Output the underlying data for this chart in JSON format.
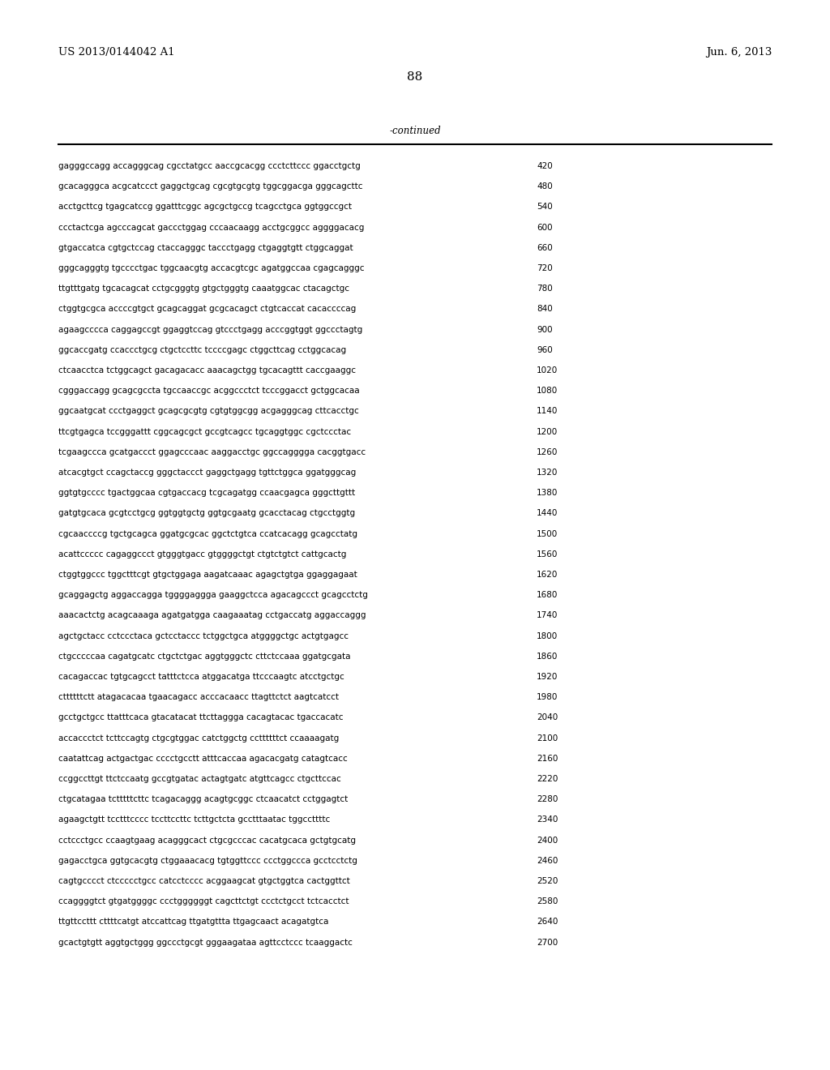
{
  "header_left": "US 2013/0144042 A1",
  "header_right": "Jun. 6, 2013",
  "page_number": "88",
  "continued_label": "-continued",
  "background_color": "#ffffff",
  "text_color": "#000000",
  "line_color": "#000000",
  "seq_font_size": 7.5,
  "header_font_size": 9.5,
  "page_num_font_size": 11,
  "continued_font_size": 8.5,
  "lines": [
    [
      "gagggccagg accagggcag cgcctatgcc aaccgcacgg ccctcttccc ggacctgctg",
      "420"
    ],
    [
      "gcacagggca acgcatccct gaggctgcag cgcgtgcgtg tggcggacga gggcagcttc",
      "480"
    ],
    [
      "acctgcttcg tgagcatccg ggatttcggc agcgctgccg tcagcctgca ggtggccgct",
      "540"
    ],
    [
      "ccctactcga agcccagcat gaccctggag cccaacaagg acctgcggcc aggggacacg",
      "600"
    ],
    [
      "gtgaccatca cgtgctccag ctaccagggc taccctgagg ctgaggtgtt ctggcaggat",
      "660"
    ],
    [
      "gggcagggtg tgcccctgac tggcaacgtg accacgtcgc agatggccaa cgagcagggc",
      "720"
    ],
    [
      "ttgtttgatg tgcacagcat cctgcgggtg gtgctgggtg caaatggcac ctacagctgc",
      "780"
    ],
    [
      "ctggtgcgca accccgtgct gcagcaggat gcgcacagct ctgtcaccat cacaccccag",
      "840"
    ],
    [
      "agaagcccca caggagccgt ggaggtccag gtccctgagg acccggtggt ggccctagtg",
      "900"
    ],
    [
      "ggcaccgatg ccaccctgcg ctgctccttc tccccgagc ctggcttcag cctggcacag",
      "960"
    ],
    [
      "ctcaacctca tctggcagct gacagacacc aaacagctgg tgcacagttt caccgaaggc",
      "1020"
    ],
    [
      "cgggaccagg gcagcgccta tgccaaccgc acggccctct tcccggacct gctggcacaa",
      "1080"
    ],
    [
      "ggcaatgcat ccctgaggct gcagcgcgtg cgtgtggcgg acgagggcag cttcacctgc",
      "1140"
    ],
    [
      "ttcgtgagca tccgggattt cggcagcgct gccgtcagcc tgcaggtggc cgctccctac",
      "1200"
    ],
    [
      "tcgaagccca gcatgaccct ggagcccaac aaggacctgc ggccagggga cacggtgacc",
      "1260"
    ],
    [
      "atcacgtgct ccagctaccg gggctaccct gaggctgagg tgttctggca ggatgggcag",
      "1320"
    ],
    [
      "ggtgtgcccc tgactggcaa cgtgaccacg tcgcagatgg ccaacgagca gggcttgttt",
      "1380"
    ],
    [
      "gatgtgcaca gcgtcctgcg ggtggtgctg ggtgcgaatg gcacctacag ctgcctggtg",
      "1440"
    ],
    [
      "cgcaaccccg tgctgcagca ggatgcgcac ggctctgtca ccatcacagg gcagcctatg",
      "1500"
    ],
    [
      "acattccccc cagaggccct gtgggtgacc gtggggctgt ctgtctgtct cattgcactg",
      "1560"
    ],
    [
      "ctggtggccc tggctttcgt gtgctggaga aagatcaaac agagctgtga ggaggagaat",
      "1620"
    ],
    [
      "gcaggagctg aggaccagga tggggaggga gaaggctcca agacagccct gcagcctctg",
      "1680"
    ],
    [
      "aaacactctg acagcaaaga agatgatgga caagaaatag cctgaccatg aggaccaggg",
      "1740"
    ],
    [
      "agctgctacc cctccctaca gctcctaccc tctggctgca atggggctgc actgtgagcc",
      "1800"
    ],
    [
      "ctgcccccaa cagatgcatc ctgctctgac aggtgggctc cttctccaaa ggatgcgata",
      "1860"
    ],
    [
      "cacagaccac tgtgcagcct tatttctcca atggacatga ttcccaagtc atcctgctgc",
      "1920"
    ],
    [
      "cttttttctt atagacacaa tgaacagacc acccacaacc ttagttctct aagtcatcct",
      "1980"
    ],
    [
      "gcctgctgcc ttatttcaca gtacatacat ttcttaggga cacagtacac tgaccacatc",
      "2040"
    ],
    [
      "accaccctct tcttccagtg ctgcgtggac catctggctg ccttttttct ccaaaagatg",
      "2100"
    ],
    [
      "caatattcag actgactgac cccctgcctt atttcaccaa agacacgatg catagtcacc",
      "2160"
    ],
    [
      "ccggccttgt ttctccaatg gccgtgatac actagtgatc atgttcagcc ctgcttccac",
      "2220"
    ],
    [
      "ctgcatagaa tctttttcttc tcagacaggg acagtgcggc ctcaacatct cctggagtct",
      "2280"
    ],
    [
      "agaagctgtt tcctttcccc tccttccttc tcttgctcta gcctttaatac tggccttttc",
      "2340"
    ],
    [
      "cctccctgcc ccaagtgaag acagggcact ctgcgcccac cacatgcaca gctgtgcatg",
      "2400"
    ],
    [
      "gagacctgca ggtgcacgtg ctggaaacacg tgtggttccc ccctggccca gcctcctctg",
      "2460"
    ],
    [
      "cagtgcccct ctccccctgcc catcctcccc acggaagcat gtgctggtca cactggttct",
      "2520"
    ],
    [
      "ccaggggtct gtgatggggc ccctggggggt cagcttctgt ccctctgcct tctcacctct",
      "2580"
    ],
    [
      "ttgttccttt cttttcatgt atccattcag ttgatgttta ttgagcaact acagatgtca",
      "2640"
    ],
    [
      "gcactgtgtt aggtgctggg ggccctgcgt gggaagataa agttcctccc tcaaggactc",
      "2700"
    ]
  ]
}
